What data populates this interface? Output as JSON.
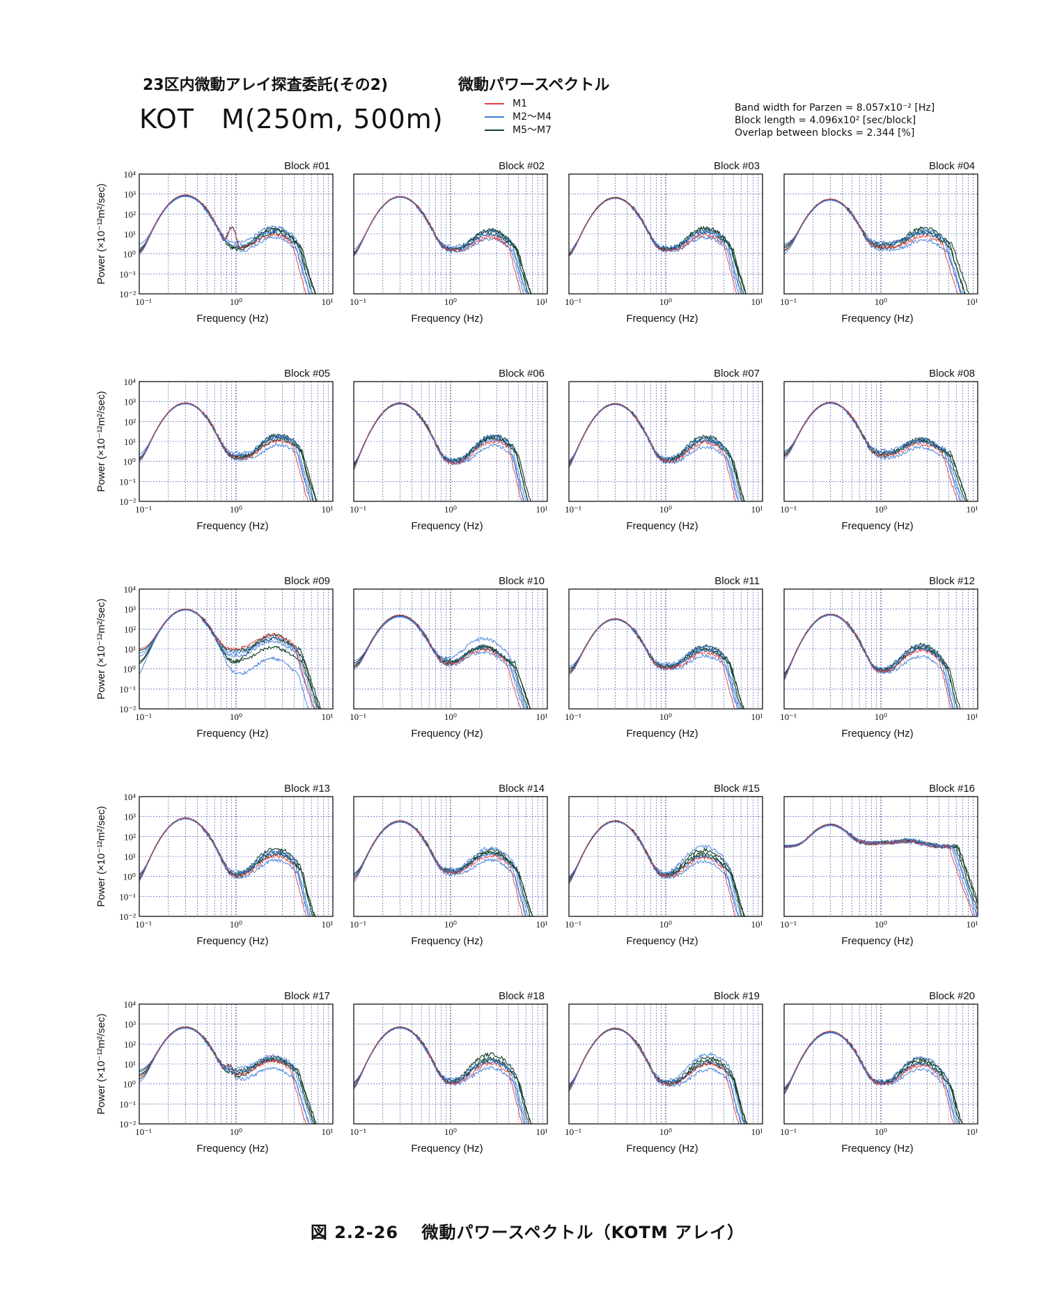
{
  "header": {
    "subtitle": "23区内微動アレイ探査委託(その2)",
    "spectrum_title": "微動パワースペクトル",
    "station": "KOT　M(250m, 500m)",
    "params": [
      "Band width for Parzen = 8.057x10⁻² [Hz]",
      "Block length = 4.096x10² [sec/block]",
      "Overlap between blocks = 2.344 [%]"
    ]
  },
  "legend": [
    {
      "label": "M1",
      "color": "#e23a3a"
    },
    {
      "label": "M2～M4",
      "color": "#3b78d8"
    },
    {
      "label": "M5～M7",
      "color": "#0f3d22"
    }
  ],
  "chart_data": {
    "type": "line",
    "x_scale": "log",
    "y_scale": "log",
    "xlim": [
      0.1,
      10
    ],
    "ylim": [
      0.01,
      10000
    ],
    "xlabel": "Frequency (Hz)",
    "ylabel": "Power (×10⁻¹²m²/sec)",
    "x_ticks": [
      "10⁻¹",
      "10⁰",
      "10¹"
    ],
    "y_ticks": [
      "10⁻²",
      "10⁻¹",
      "10⁰",
      "10¹",
      "10²",
      "10³",
      "10⁴"
    ],
    "grid": true,
    "blocks": [
      {
        "name": "Block #01",
        "low": [
          1.0,
          1.6,
          2.8,
          0.6,
          0.8,
          1.2,
          0.9
        ],
        "peak": [
          900,
          780,
          820,
          750,
          900,
          860,
          800
        ],
        "bump": [
          8,
          12,
          20,
          6,
          15,
          10,
          18
        ],
        "bump_f": 2.5,
        "valley": 1.0,
        "mid_peak": [
          0.9,
          20
        ],
        "fc": 4.2
      },
      {
        "name": "Block #02",
        "low": [
          0.6,
          0.8,
          1.4,
          0.5,
          0.7,
          0.9,
          0.6
        ],
        "peak": [
          750,
          700,
          720,
          680,
          760,
          740,
          700
        ],
        "bump": [
          6,
          8,
          12,
          5,
          15,
          9,
          14
        ],
        "bump_f": 2.6,
        "valley": 1.1,
        "mid_peak": [
          0,
          0
        ],
        "fc": 4.4
      },
      {
        "name": "Block #03",
        "low": [
          0.5,
          0.7,
          1.2,
          0.5,
          0.6,
          0.8,
          0.6
        ],
        "peak": [
          650,
          620,
          640,
          600,
          680,
          660,
          640
        ],
        "bump": [
          8,
          10,
          14,
          6,
          20,
          12,
          16
        ],
        "bump_f": 2.6,
        "valley": 1.2,
        "mid_peak": [
          0,
          0
        ],
        "fc": 4.4
      },
      {
        "name": "Block #04",
        "low": [
          1.4,
          3.0,
          2.0,
          0.8,
          1.8,
          1.2,
          2.4
        ],
        "peak": [
          550,
          500,
          520,
          480,
          560,
          540,
          520
        ],
        "bump": [
          6,
          8,
          14,
          4,
          18,
          10,
          12
        ],
        "bump_f": 2.8,
        "valley": 1.0,
        "mid_peak": [
          0,
          0
        ],
        "fc": 4.8
      },
      {
        "name": "Block #05",
        "low": [
          0.8,
          1.3,
          2.0,
          0.6,
          0.9,
          1.2,
          0.9
        ],
        "peak": [
          850,
          780,
          820,
          760,
          860,
          840,
          800
        ],
        "bump": [
          10,
          14,
          18,
          6,
          22,
          12,
          16
        ],
        "bump_f": 2.8,
        "valley": 0.8,
        "mid_peak": [
          0,
          0
        ],
        "fc": 4.3
      },
      {
        "name": "Block #06",
        "low": [
          0.1,
          0.2,
          0.5,
          0.08,
          0.3,
          0.15,
          0.4
        ],
        "peak": [
          820,
          760,
          790,
          740,
          850,
          810,
          780
        ],
        "bump": [
          10,
          12,
          18,
          6,
          20,
          14,
          16
        ],
        "bump_f": 2.8,
        "valley": 0.9,
        "mid_peak": [
          0,
          0
        ],
        "fc": 4.4
      },
      {
        "name": "Block #07",
        "low": [
          0.3,
          0.5,
          0.8,
          0.2,
          0.4,
          0.6,
          0.3
        ],
        "peak": [
          780,
          720,
          750,
          700,
          800,
          760,
          740
        ],
        "bump": [
          8,
          10,
          14,
          5,
          18,
          10,
          14
        ],
        "bump_f": 2.6,
        "valley": 0.8,
        "mid_peak": [
          0,
          0
        ],
        "fc": 4.4
      },
      {
        "name": "Block #08",
        "low": [
          1.5,
          2.0,
          3.0,
          1.0,
          1.8,
          2.4,
          1.4
        ],
        "peak": [
          900,
          820,
          860,
          800,
          920,
          880,
          850
        ],
        "bump": [
          6,
          8,
          10,
          4,
          12,
          8,
          10
        ],
        "bump_f": 2.6,
        "valley": 0.6,
        "mid_peak": [
          0,
          0
        ],
        "fc": 4.8
      },
      {
        "name": "Block #09",
        "low": [
          10,
          4,
          6,
          0.2,
          8,
          2,
          1.5
        ],
        "peak": [
          1000,
          900,
          950,
          880,
          1000,
          960,
          920
        ],
        "bump": [
          40,
          20,
          30,
          3,
          25,
          10,
          50
        ],
        "bump_f": 2.4,
        "valley": 0.4,
        "mid_peak": [
          0,
          0
        ],
        "fc": 4.4
      },
      {
        "name": "Block #10",
        "low": [
          1.0,
          1.5,
          2.4,
          0.8,
          1.2,
          1.8,
          1.0
        ],
        "peak": [
          480,
          420,
          450,
          400,
          500,
          460,
          440
        ],
        "bump": [
          8,
          10,
          30,
          6,
          12,
          9,
          12
        ],
        "bump_f": 2.2,
        "valley": 0.8,
        "mid_peak": [
          0,
          0
        ],
        "fc": 4.2
      },
      {
        "name": "Block #11",
        "low": [
          0.5,
          0.8,
          1.2,
          0.4,
          0.6,
          0.9,
          0.5
        ],
        "peak": [
          320,
          300,
          310,
          290,
          330,
          320,
          300
        ],
        "bump": [
          6,
          8,
          12,
          4,
          14,
          8,
          10
        ],
        "bump_f": 2.6,
        "valley": 0.7,
        "mid_peak": [
          0,
          0
        ],
        "fc": 4.2
      },
      {
        "name": "Block #12",
        "low": [
          0.1,
          0.2,
          0.4,
          0.08,
          0.3,
          0.15,
          0.3
        ],
        "peak": [
          550,
          500,
          520,
          480,
          560,
          540,
          520
        ],
        "bump": [
          8,
          10,
          14,
          4,
          16,
          10,
          12
        ],
        "bump_f": 2.6,
        "valley": 0.7,
        "mid_peak": [
          0,
          0
        ],
        "fc": 4.5
      },
      {
        "name": "Block #13",
        "low": [
          0.4,
          0.6,
          1.0,
          0.3,
          0.5,
          0.8,
          0.4
        ],
        "peak": [
          850,
          780,
          820,
          760,
          860,
          840,
          800
        ],
        "bump": [
          10,
          14,
          18,
          6,
          25,
          12,
          16
        ],
        "bump_f": 2.6,
        "valley": 0.7,
        "mid_peak": [
          0,
          0
        ],
        "fc": 4.3
      },
      {
        "name": "Block #14",
        "low": [
          0.5,
          0.8,
          1.2,
          0.3,
          0.7,
          1.0,
          0.5
        ],
        "peak": [
          600,
          550,
          580,
          520,
          620,
          600,
          560
        ],
        "bump": [
          10,
          12,
          25,
          6,
          20,
          14,
          16
        ],
        "bump_f": 2.6,
        "valley": 1.2,
        "mid_peak": [
          0,
          0
        ],
        "fc": 4.6
      },
      {
        "name": "Block #15",
        "low": [
          0.3,
          0.5,
          0.8,
          0.2,
          0.4,
          0.6,
          0.3
        ],
        "peak": [
          600,
          560,
          580,
          540,
          620,
          600,
          570
        ],
        "bump": [
          8,
          10,
          30,
          5,
          20,
          10,
          14
        ],
        "bump_f": 2.5,
        "valley": 0.8,
        "mid_peak": [
          0,
          0
        ],
        "fc": 4.4
      },
      {
        "name": "Block #16",
        "low": [
          30,
          32,
          36,
          28,
          30,
          34,
          30
        ],
        "peak": [
          380,
          330,
          350,
          320,
          390,
          360,
          340
        ],
        "bump": [
          18,
          20,
          24,
          16,
          20,
          22,
          20
        ],
        "bump_f": 2.0,
        "valley": 20,
        "mid_peak": [
          0,
          0
        ],
        "fc": 5.6
      },
      {
        "name": "Block #17",
        "low": [
          2.0,
          3.0,
          5.0,
          1.0,
          2.5,
          4.0,
          1.5
        ],
        "peak": [
          700,
          640,
          680,
          620,
          720,
          700,
          660
        ],
        "bump": [
          12,
          14,
          20,
          5,
          20,
          12,
          16
        ],
        "bump_f": 2.4,
        "valley": 0.8,
        "mid_peak": [
          0.85,
          6
        ],
        "fc": 4.0
      },
      {
        "name": "Block #18",
        "low": [
          0.4,
          0.6,
          1.0,
          0.3,
          0.5,
          0.8,
          0.4
        ],
        "peak": [
          700,
          640,
          680,
          620,
          720,
          700,
          660
        ],
        "bump": [
          10,
          12,
          16,
          6,
          30,
          14,
          18
        ],
        "bump_f": 2.6,
        "valley": 0.8,
        "mid_peak": [
          0,
          0
        ],
        "fc": 4.5
      },
      {
        "name": "Block #19",
        "low": [
          0.3,
          0.5,
          0.8,
          0.2,
          0.4,
          0.6,
          0.3
        ],
        "peak": [
          600,
          560,
          580,
          540,
          620,
          600,
          570
        ],
        "bump": [
          10,
          12,
          30,
          5,
          20,
          10,
          14
        ],
        "bump_f": 2.8,
        "valley": 0.8,
        "mid_peak": [
          0,
          0
        ],
        "fc": 4.6
      },
      {
        "name": "Block #20",
        "low": [
          0.2,
          0.3,
          0.5,
          0.15,
          0.3,
          0.4,
          0.2
        ],
        "peak": [
          420,
          380,
          400,
          360,
          430,
          410,
          390
        ],
        "bump": [
          8,
          10,
          20,
          5,
          18,
          10,
          14
        ],
        "bump_f": 2.6,
        "valley": 1.0,
        "mid_peak": [
          0,
          0
        ],
        "fc": 4.8
      }
    ]
  },
  "caption": {
    "figure_no": "図 2.2-26",
    "text": "微動パワースペクトル（KOTM アレイ）"
  }
}
